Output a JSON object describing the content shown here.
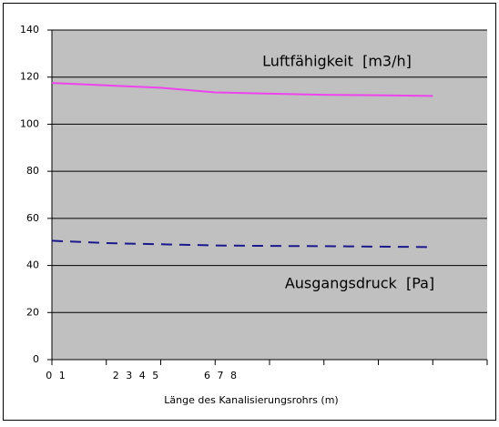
{
  "chart_data": {
    "type": "line",
    "x_label": "Länge des Kanalisierungsrohrs (m)",
    "x_axis_labels": [
      "0 1",
      "2 3 4 5",
      "6 7 8"
    ],
    "x": [
      0,
      1,
      2,
      3,
      4,
      5,
      6,
      7
    ],
    "xlim": [
      0,
      8
    ],
    "series": [
      {
        "name": "Luftfähigkeit  [m3/h]",
        "color": "#ee44ee",
        "dash": false,
        "values": [
          117.5,
          116.5,
          115.5,
          113.5,
          113,
          112.5,
          112.3,
          112
        ]
      },
      {
        "name": "Ausgangsdruck  [Pa]",
        "color": "#1a1a8c",
        "dash": true,
        "values": [
          50.5,
          49.5,
          49,
          48.5,
          48.3,
          48.2,
          48,
          47.8
        ]
      }
    ],
    "ylim": [
      0,
      140
    ],
    "yticks": [
      0,
      20,
      40,
      60,
      80,
      100,
      120,
      140
    ],
    "grid": true,
    "background": "#c0c0c0"
  }
}
